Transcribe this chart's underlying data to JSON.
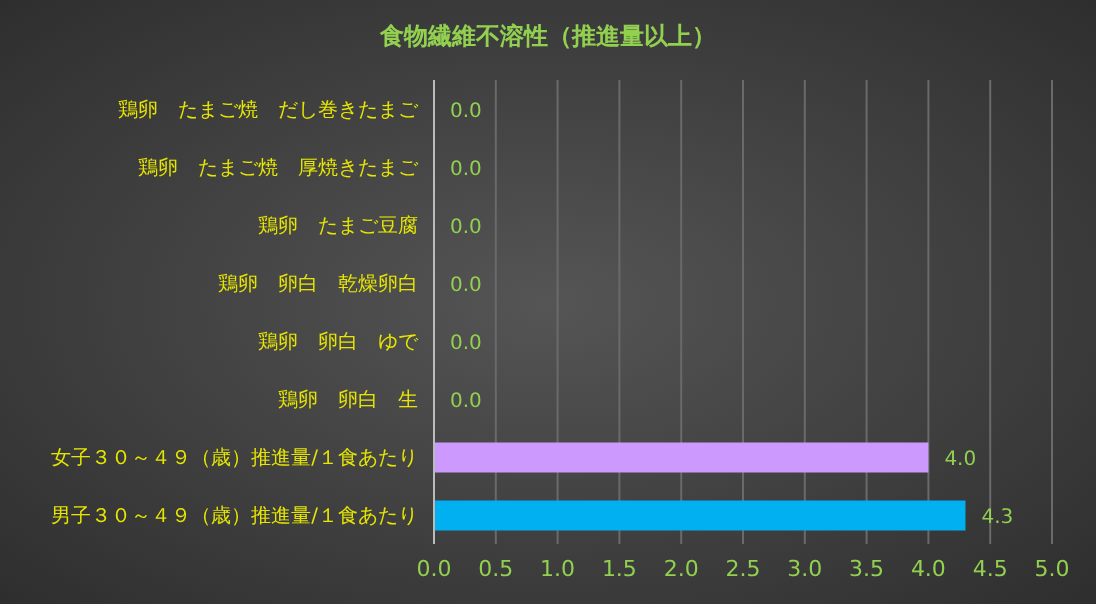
{
  "chart_data": {
    "type": "bar",
    "orientation": "horizontal",
    "title": "食物繊維不溶性（推進量以上）",
    "categories": [
      "鶏卵　たまご焼　だし巻きたまご",
      "鶏卵　たまご焼　厚焼きたまご",
      "鶏卵　たまご豆腐",
      "鶏卵　卵白　乾燥卵白",
      "鶏卵　卵白　ゆで",
      "鶏卵　卵白　生",
      "女子３０～４９（歳）推進量/１食あたり",
      "男子３０～４９（歳）推進量/１食あたり"
    ],
    "values": [
      0,
      0,
      0,
      0,
      0,
      0,
      4.0,
      4.3
    ],
    "colors": [
      "#00b0f0",
      "#00b0f0",
      "#00b0f0",
      "#00b0f0",
      "#00b0f0",
      "#00b0f0",
      "#cc99ff",
      "#00b0f0"
    ],
    "value_labels": [
      "0.0",
      "0.0",
      "0.0",
      "0.0",
      "0.0",
      "0.0",
      "4.0",
      "4.3"
    ],
    "xlim": [
      0,
      5
    ],
    "xticks": [
      {
        "value": 0,
        "label": "0.0"
      },
      {
        "value": 0.5,
        "label": "0.5"
      },
      {
        "value": 1,
        "label": "1.0"
      },
      {
        "value": 1.5,
        "label": "1.5"
      },
      {
        "value": 2,
        "label": "2.0"
      },
      {
        "value": 2.5,
        "label": "2.5"
      },
      {
        "value": 3,
        "label": "3.0"
      },
      {
        "value": 3.5,
        "label": "3.5"
      },
      {
        "value": 4,
        "label": "4.0"
      },
      {
        "value": 4.5,
        "label": "4.5"
      },
      {
        "value": 5,
        "label": "5.0"
      }
    ],
    "grid": "x"
  }
}
